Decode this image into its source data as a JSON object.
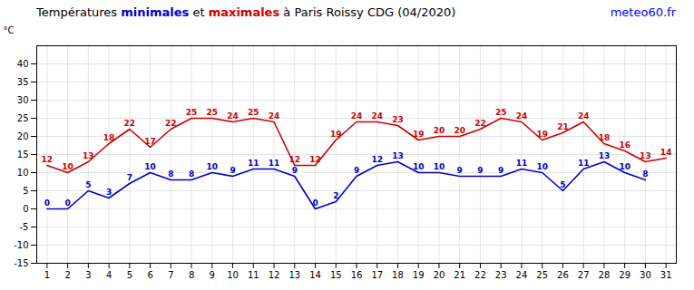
{
  "chart_data": {
    "type": "line",
    "title": "Températures minimales et maximales à Paris Roissy CDG (04/2020)",
    "ylabel": "°C",
    "annotations": [
      {
        "text": "meteo60.fr",
        "color": "blue"
      }
    ],
    "x": [
      1,
      2,
      3,
      4,
      5,
      6,
      7,
      8,
      9,
      10,
      11,
      12,
      13,
      14,
      15,
      16,
      17,
      18,
      19,
      20,
      21,
      22,
      23,
      24,
      25,
      26,
      27,
      28,
      29,
      30,
      31
    ],
    "series": [
      {
        "name": "minimales",
        "color": "#0000cc",
        "values": [
          0,
          0,
          5,
          3,
          7,
          10,
          8,
          8,
          10,
          9,
          11,
          11,
          9,
          0,
          2,
          9,
          12,
          13,
          10,
          10,
          9,
          9,
          9,
          11,
          10,
          5,
          11,
          13,
          10,
          8,
          null
        ]
      },
      {
        "name": "maximales",
        "color": "#cc0000",
        "values": [
          12,
          10,
          13,
          18,
          22,
          17,
          22,
          25,
          25,
          24,
          25,
          24,
          12,
          12,
          19,
          24,
          24,
          23,
          19,
          20,
          20,
          22,
          25,
          24,
          19,
          21,
          24,
          18,
          16,
          13,
          14
        ]
      }
    ],
    "xlim": [
      0.5,
      31.5
    ],
    "xticks": [
      1,
      2,
      3,
      4,
      5,
      6,
      7,
      8,
      9,
      10,
      11,
      12,
      13,
      14,
      15,
      16,
      17,
      18,
      19,
      20,
      21,
      22,
      23,
      24,
      25,
      26,
      27,
      28,
      29,
      30,
      31
    ],
    "ylim": [
      -15,
      45
    ],
    "yticks": [
      -15,
      -10,
      -5,
      0,
      5,
      10,
      15,
      20,
      25,
      30,
      35,
      40
    ],
    "grid": true,
    "data_labels": true
  }
}
